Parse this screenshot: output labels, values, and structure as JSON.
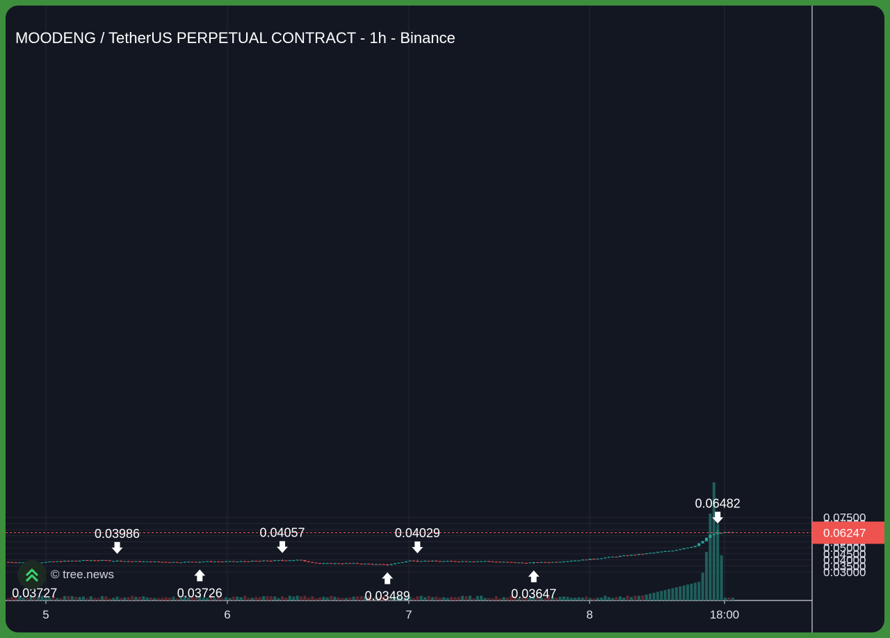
{
  "chart_data": {
    "type": "candlestick",
    "title": "MOODENG / TetherUS PERPETUAL CONTRACT - 1h - Binance",
    "y_ticks": [
      "0.07500",
      "0.07000",
      "0.06500",
      "0.06000",
      "0.05500",
      "0.05000",
      "0.04500",
      "0.04000",
      "0.03500",
      "0.03000"
    ],
    "ylim": [
      0.0275,
      0.0765
    ],
    "x_ticks": [
      "5",
      "6",
      "7",
      "8",
      "18:00"
    ],
    "last_price": "0.06247",
    "annotations": [
      {
        "label": "0.03727",
        "type": "low",
        "value": 0.03727
      },
      {
        "label": "0.03986",
        "type": "high",
        "value": 0.03986
      },
      {
        "label": "0.03726",
        "type": "low",
        "value": 0.03726
      },
      {
        "label": "0.04057",
        "type": "high",
        "value": 0.04057
      },
      {
        "label": "0.03489",
        "type": "low",
        "value": 0.03489
      },
      {
        "label": "0.04029",
        "type": "high",
        "value": 0.04029
      },
      {
        "label": "0.03647",
        "type": "low",
        "value": 0.03647
      },
      {
        "label": "0.06482",
        "type": "high",
        "value": 0.06482
      }
    ],
    "colors": {
      "up": "#26a69a",
      "down": "#ef5350",
      "background": "#131722",
      "grid": "#242733",
      "text": "#ffffff",
      "axis_text": "#e0e3eb"
    },
    "grid": true
  },
  "watermark": {
    "text": "© tree.news",
    "icon": "double-chevron-up-icon"
  }
}
